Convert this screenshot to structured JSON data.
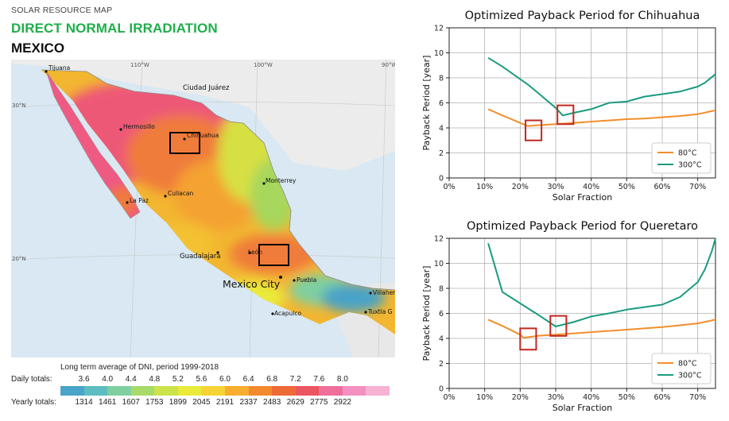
{
  "map": {
    "header_small": "SOLAR RESOURCE MAP",
    "header_title": "DIRECT NORMAL IRRADIATION",
    "header_country": "MEXICO",
    "longitude_labels": [
      "110°W",
      "100°W",
      "90°W"
    ],
    "latitude_labels": [
      "30°N",
      "20°N"
    ],
    "cities": [
      "Tijuana",
      "Ciudad Juárez",
      "Hermosillo",
      "Chihuahua",
      "Monterrey",
      "Culiacan",
      "La Paz",
      "Guadalajara",
      "León",
      "Mexico City",
      "Puebla",
      "Acapulco",
      "Villaher",
      "Tuxtla G"
    ],
    "legend": {
      "caption": "Long term average of DNI, period 1999-2018",
      "daily_label": "Daily totals:",
      "daily_values": [
        "3.6",
        "4.0",
        "4.4",
        "4.8",
        "5.2",
        "5.6",
        "6.0",
        "6.4",
        "6.8",
        "7.2",
        "7.6",
        "8.0"
      ],
      "yearly_label": "Yearly totals:",
      "yearly_values": [
        "1314",
        "1461",
        "1607",
        "1753",
        "1899",
        "2045",
        "2191",
        "2337",
        "2483",
        "2629",
        "2775",
        "2922"
      ],
      "colors": [
        "#4aa3c8",
        "#5dbdc0",
        "#7fcfa0",
        "#a8db6a",
        "#cde34a",
        "#eaea3a",
        "#f6d334",
        "#f7ad2e",
        "#f38a2d",
        "#ee6a36",
        "#ec5660",
        "#f06e9b",
        "#f490c0",
        "#f7b2d3"
      ]
    }
  },
  "chart_data": [
    {
      "type": "line",
      "title": "Optimized Payback Period for Chihuahua",
      "xlabel": "Solar Fraction",
      "ylabel": "Payback Period [year]",
      "xlim": [
        0,
        75
      ],
      "ylim": [
        0,
        12
      ],
      "xticks": [
        "0%",
        "10%",
        "20%",
        "30%",
        "40%",
        "50%",
        "60%",
        "70%"
      ],
      "yticks": [
        "0",
        "2",
        "4",
        "6",
        "8",
        "10",
        "12"
      ],
      "grid": true,
      "legend_position": "lower-right",
      "series": [
        {
          "name": "80°C",
          "color": "#f28e2b",
          "x": [
            11,
            15,
            20,
            22,
            25,
            30,
            35,
            40,
            45,
            50,
            55,
            60,
            65,
            70,
            75
          ],
          "y": [
            5.5,
            5.0,
            4.4,
            4.15,
            4.2,
            4.3,
            4.4,
            4.5,
            4.6,
            4.7,
            4.75,
            4.85,
            4.95,
            5.1,
            5.4
          ]
        },
        {
          "name": "300°C",
          "color": "#1a9b80",
          "x": [
            11,
            15,
            20,
            22,
            25,
            30,
            32,
            35,
            40,
            45,
            50,
            55,
            60,
            65,
            70,
            72,
            75
          ],
          "y": [
            9.6,
            8.9,
            7.9,
            7.5,
            6.8,
            5.6,
            5.0,
            5.2,
            5.5,
            6.0,
            6.1,
            6.5,
            6.7,
            6.9,
            7.3,
            7.6,
            8.3
          ]
        }
      ],
      "highlight_boxes": [
        {
          "x": [
            21.5,
            26
          ],
          "y": [
            3.0,
            4.6
          ]
        },
        {
          "x": [
            30.5,
            35
          ],
          "y": [
            4.3,
            5.8
          ]
        }
      ]
    },
    {
      "type": "line",
      "title": "Optimized Payback Period for Queretaro",
      "xlabel": "Solar Fraction",
      "ylabel": "Payback Period [year]",
      "xlim": [
        0,
        75
      ],
      "ylim": [
        0,
        12
      ],
      "xticks": [
        "0%",
        "10%",
        "20%",
        "30%",
        "40%",
        "50%",
        "60%",
        "70%"
      ],
      "yticks": [
        "0",
        "2",
        "4",
        "6",
        "8",
        "10",
        "12"
      ],
      "grid": true,
      "legend_position": "lower-right",
      "series": [
        {
          "name": "80°C",
          "color": "#f28e2b",
          "x": [
            11,
            15,
            20,
            21,
            25,
            30,
            35,
            40,
            45,
            50,
            55,
            60,
            65,
            70,
            75
          ],
          "y": [
            5.5,
            5.0,
            4.3,
            4.05,
            4.2,
            4.3,
            4.4,
            4.5,
            4.6,
            4.7,
            4.8,
            4.9,
            5.05,
            5.2,
            5.5
          ]
        },
        {
          "name": "300°C",
          "color": "#1a9b80",
          "x": [
            11,
            15,
            20,
            25,
            30,
            35,
            40,
            45,
            50,
            55,
            60,
            65,
            70,
            72,
            74,
            75
          ],
          "y": [
            11.6,
            7.7,
            6.8,
            5.9,
            4.95,
            5.3,
            5.75,
            6.0,
            6.3,
            6.5,
            6.7,
            7.3,
            8.5,
            9.5,
            11.0,
            12.0
          ]
        }
      ],
      "highlight_boxes": [
        {
          "x": [
            20,
            24.5
          ],
          "y": [
            3.1,
            4.8
          ]
        },
        {
          "x": [
            28.5,
            33
          ],
          "y": [
            4.2,
            5.8
          ]
        }
      ]
    }
  ]
}
